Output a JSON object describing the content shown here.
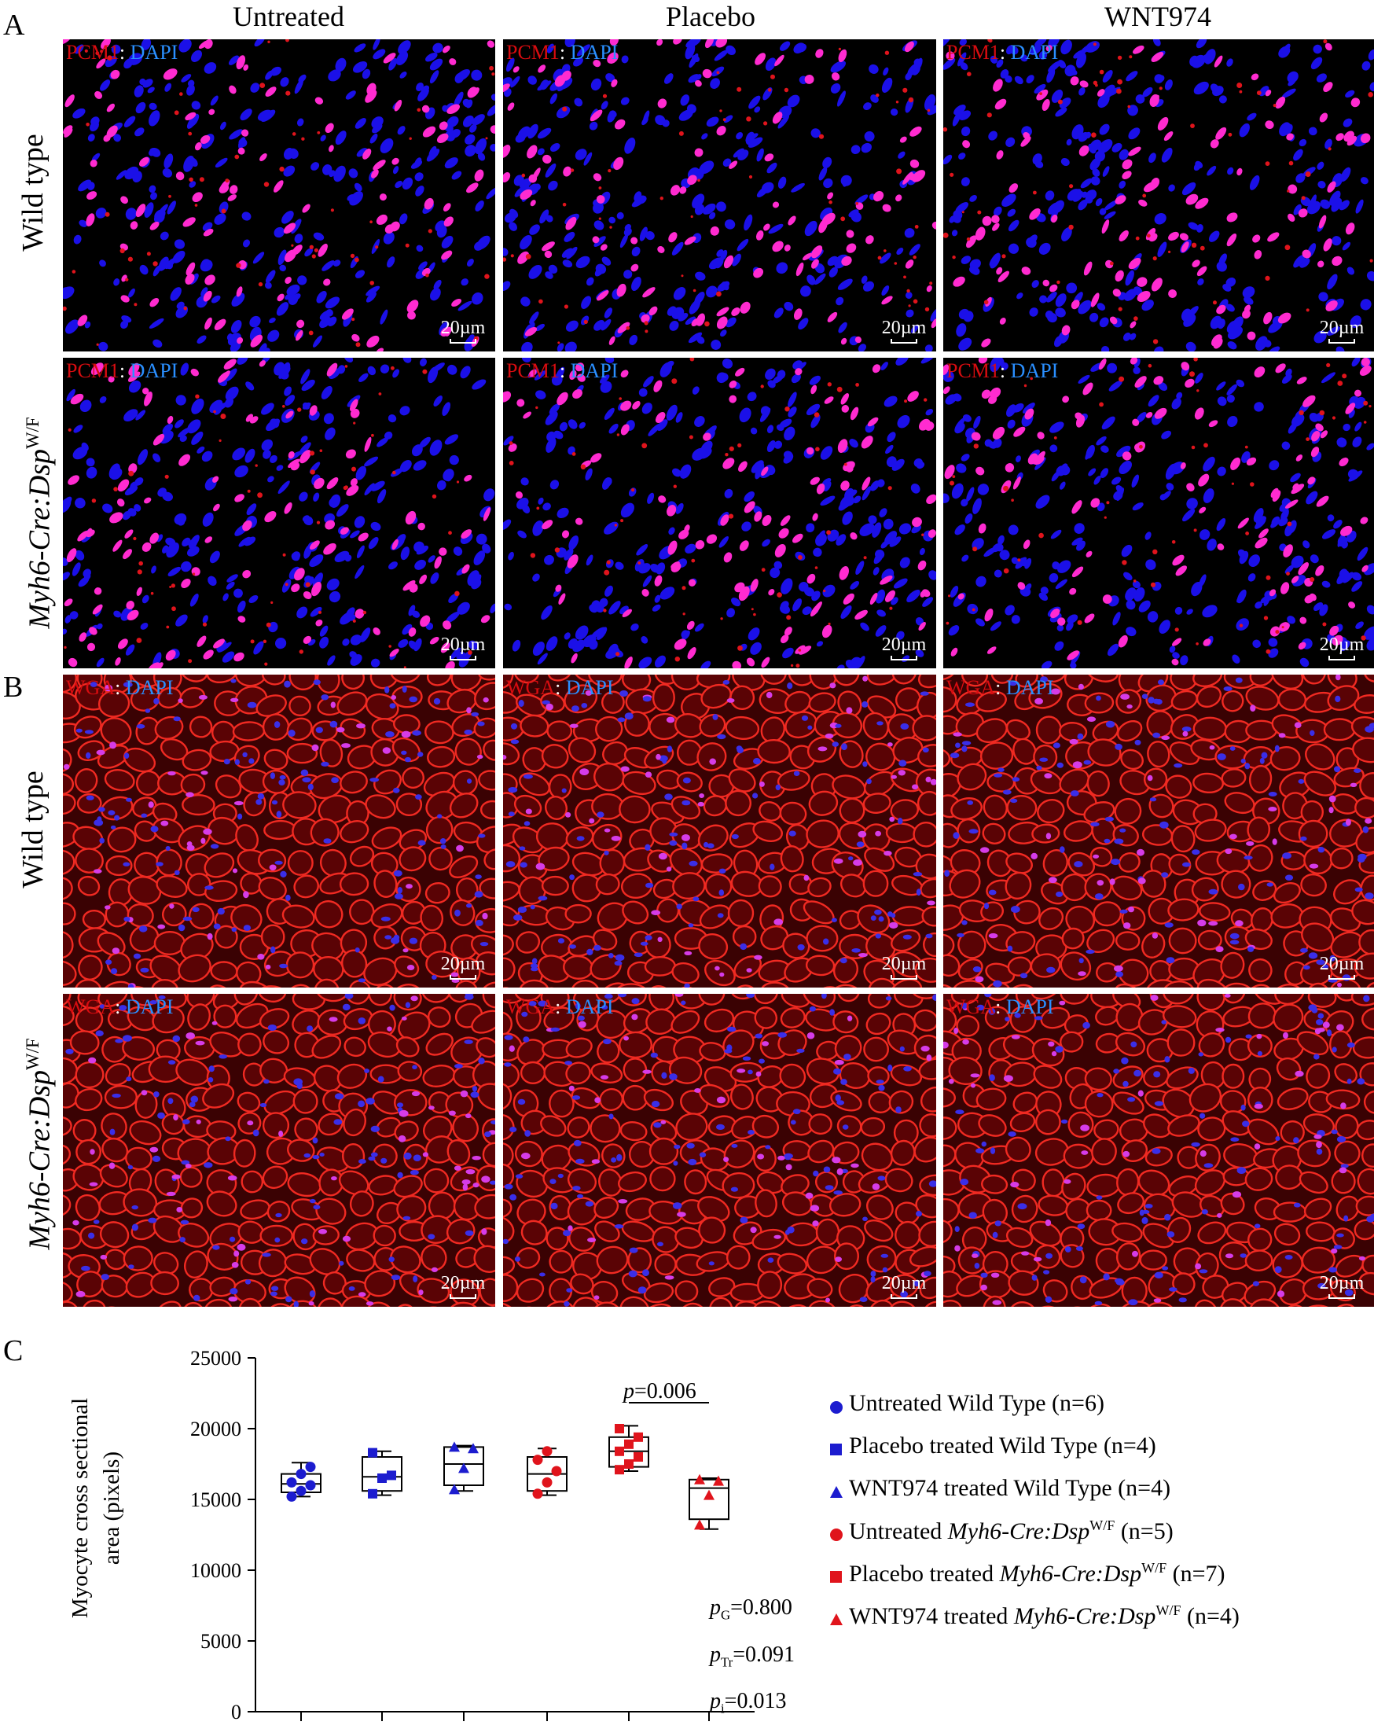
{
  "panels": {
    "a": "A",
    "b": "B",
    "c": "C"
  },
  "columns": [
    "Untreated",
    "Placebo",
    "WNT974"
  ],
  "rows": {
    "wild_type": "Wild type",
    "mutant_prefix": "Myh6-Cre:Dsp",
    "mutant_sup": "W/F"
  },
  "stains": {
    "pcm1": "PCM1",
    "wga": "WGA",
    "separator": ": ",
    "dapi": "DAPI"
  },
  "scale_bar": "20µm",
  "colors": {
    "stain_red": "#d80c10",
    "dapi_blue": "#2a8fff",
    "wild_type_marker": "#1c1ccf",
    "mutant_marker": "#e0141c"
  },
  "chart_data": {
    "type": "box",
    "ylabel_line1": "Myocyte cross sectional",
    "ylabel_line2": "area (pixels)",
    "ylim": [
      0,
      25000
    ],
    "yticks": [
      0,
      5000,
      10000,
      15000,
      20000,
      25000
    ],
    "groups": [
      {
        "marker": "circle",
        "color": "#1c1ccf",
        "box": {
          "min": 15200,
          "q1": 15500,
          "median": 16100,
          "q3": 16800,
          "max": 17600
        },
        "points": [
          15200,
          15600,
          16000,
          16200,
          16800,
          17300
        ]
      },
      {
        "marker": "square",
        "color": "#1c1ccf",
        "box": {
          "min": 15300,
          "q1": 15600,
          "median": 16600,
          "q3": 18000,
          "max": 18400
        },
        "points": [
          15400,
          16500,
          16700,
          18300
        ]
      },
      {
        "marker": "triangle",
        "color": "#1c1ccf",
        "box": {
          "min": 15600,
          "q1": 16000,
          "median": 17500,
          "q3": 18700,
          "max": 18800
        },
        "points": [
          15700,
          17200,
          18600,
          18700
        ]
      },
      {
        "marker": "circle",
        "color": "#e0141c",
        "box": {
          "min": 15300,
          "q1": 15600,
          "median": 16800,
          "q3": 18000,
          "max": 18600
        },
        "points": [
          15400,
          16200,
          17000,
          17800,
          18400
        ]
      },
      {
        "marker": "square",
        "color": "#e0141c",
        "box": {
          "min": 17000,
          "q1": 17300,
          "median": 18400,
          "q3": 19400,
          "max": 20200
        },
        "points": [
          17100,
          17500,
          18000,
          18400,
          18900,
          19400,
          20000
        ]
      },
      {
        "marker": "triangle",
        "color": "#e0141c",
        "box": {
          "min": 12900,
          "q1": 13600,
          "median": 15800,
          "q3": 16400,
          "max": 16500
        },
        "points": [
          13200,
          15300,
          16300,
          16400
        ]
      }
    ],
    "comparison": {
      "from": 4,
      "to": 5,
      "p_italic": "p",
      "p_value": "=0.006"
    },
    "stats": [
      {
        "italic": "p",
        "sub": "G",
        "value": "=0.800"
      },
      {
        "italic": "p",
        "sub": "Tr",
        "value": "=0.091"
      },
      {
        "italic": "p",
        "sub": "i",
        "value": "=0.013"
      }
    ],
    "legend": [
      {
        "marker": "circle",
        "color": "#1c1ccf",
        "prefix": "Untreated Wild Type",
        "italic": "",
        "sup": "",
        "count": "(n=6)"
      },
      {
        "marker": "square",
        "color": "#1c1ccf",
        "prefix": "Placebo treated Wild Type",
        "italic": "",
        "sup": "",
        "count": "(n=4)"
      },
      {
        "marker": "triangle",
        "color": "#1c1ccf",
        "prefix": "WNT974 treated Wild Type",
        "italic": "",
        "sup": "",
        "count": "(n=4)"
      },
      {
        "marker": "circle",
        "color": "#e0141c",
        "prefix": "Untreated ",
        "italic": "Myh6-Cre:Dsp",
        "sup": "W/F",
        "count": "(n=5)"
      },
      {
        "marker": "square",
        "color": "#e0141c",
        "prefix": "Placebo treated ",
        "italic": "Myh6-Cre:Dsp",
        "sup": "W/F",
        "count": "(n=7)"
      },
      {
        "marker": "triangle",
        "color": "#e0141c",
        "prefix": "WNT974 treated ",
        "italic": "Myh6-Cre:Dsp",
        "sup": "W/F",
        "count": "(n=4)"
      }
    ]
  }
}
